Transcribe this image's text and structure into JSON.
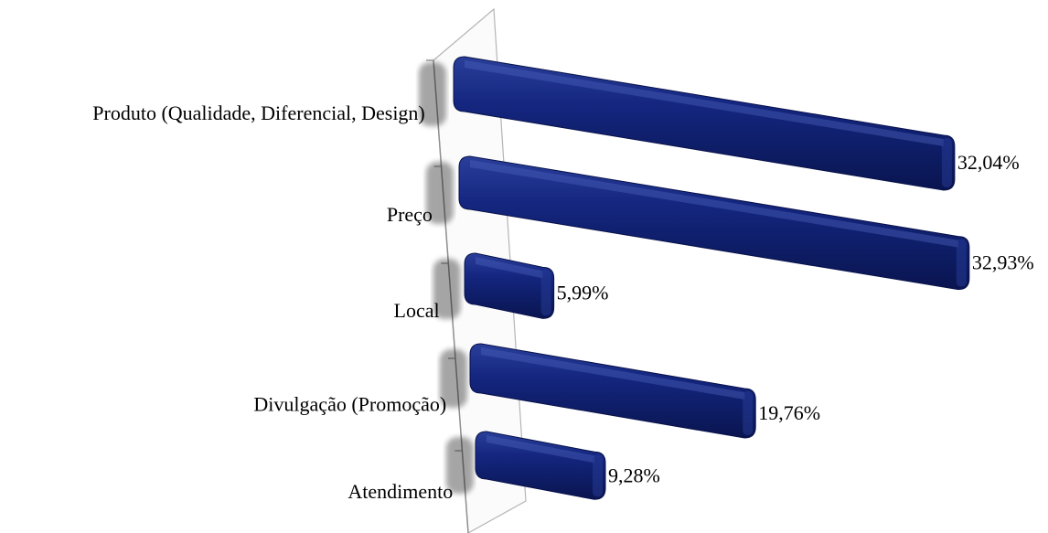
{
  "chart_data": {
    "type": "bar",
    "orientation": "horizontal",
    "categories": [
      "Produto (Qualidade, Diferencial, Design)",
      "Preço",
      "Local",
      "Divulgação (Promoção)",
      "Atendimento"
    ],
    "values": [
      32.04,
      32.93,
      5.99,
      19.76,
      9.28
    ],
    "data_labels": [
      "32,04%",
      "32,93%",
      "5,99%",
      "19,76%",
      "9,28%"
    ],
    "unit": "%",
    "style": "3d",
    "bar_color": "#0f1f6e",
    "legend": "none",
    "grid": false
  }
}
